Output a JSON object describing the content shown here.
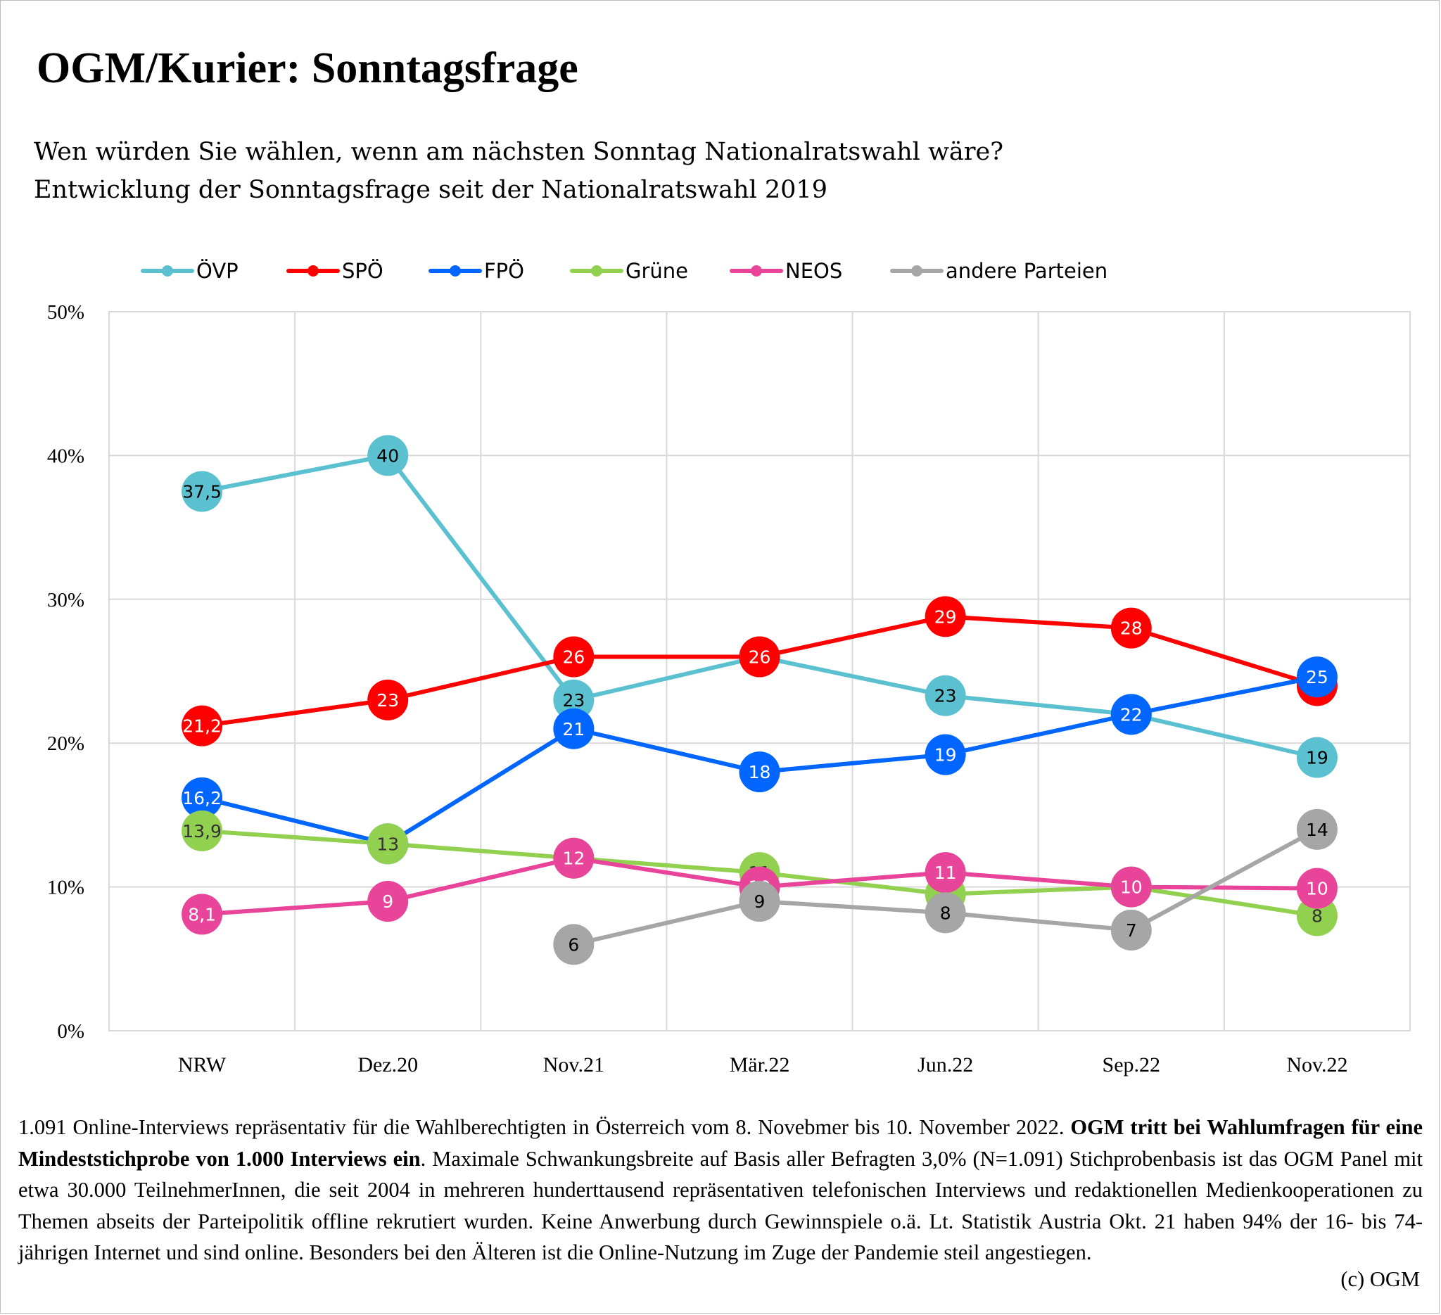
{
  "title": "OGM/Kurier: Sonntagsfrage",
  "subtitle_line1": "Wen würden Sie wählen, wenn am nächsten Sonntag Nationalratswahl wäre?",
  "subtitle_line2": "Entwicklung der Sonntagsfrage seit der Nationalratswahl 2019",
  "chart_data": {
    "type": "line",
    "categories": [
      "NRW",
      "Dez.20",
      "Nov.21",
      "Mär.22",
      "Jun.22",
      "Sep.22",
      "Nov.22"
    ],
    "ylim": [
      0,
      50
    ],
    "yticks": [
      0,
      10,
      20,
      30,
      40,
      50
    ],
    "ytick_labels": [
      "0%",
      "10%",
      "20%",
      "30%",
      "40%",
      "50%"
    ],
    "grid": true,
    "legend_position": "top",
    "series": [
      {
        "name": "ÖVP",
        "color": "#5BC0CF",
        "label_color": "#000000",
        "values": [
          37.5,
          40,
          23,
          26,
          23.3,
          22,
          19
        ],
        "labels": [
          "37,5",
          "40",
          "23",
          "",
          "23",
          "",
          "19"
        ]
      },
      {
        "name": "SPÖ",
        "color": "#FF0000",
        "label_color": "#ffffff",
        "values": [
          21.2,
          23,
          26,
          26,
          28.8,
          28,
          24
        ],
        "labels": [
          "21,2",
          "23",
          "26",
          "26",
          "29",
          "28",
          "24"
        ]
      },
      {
        "name": "FPÖ",
        "color": "#0066FF",
        "label_color": "#ffffff",
        "values": [
          16.2,
          13,
          21,
          18,
          19.2,
          22,
          24.6
        ],
        "labels": [
          "16,2",
          "",
          "21",
          "18",
          "19",
          "22",
          "25"
        ]
      },
      {
        "name": "Grüne",
        "color": "#92D050",
        "label_color": "#333333",
        "values": [
          13.9,
          13,
          12,
          11,
          9.5,
          10,
          8
        ],
        "labels": [
          "13,9",
          "13",
          "",
          "11",
          "",
          "",
          "8"
        ]
      },
      {
        "name": "NEOS",
        "color": "#E8449A",
        "label_color": "#ffffff",
        "values": [
          8.1,
          9,
          12,
          10,
          11,
          10,
          9.9
        ],
        "labels": [
          "8,1",
          "9",
          "12",
          "10",
          "11",
          "10",
          "10"
        ]
      },
      {
        "name": "andere Parteien",
        "color": "#A6A6A6",
        "label_color": "#000000",
        "values": [
          null,
          null,
          6,
          9,
          8.2,
          7,
          14
        ],
        "labels": [
          "",
          "",
          "6",
          "9",
          "8",
          "7",
          "14"
        ]
      }
    ]
  },
  "footnote": {
    "part1": "1.091 Online-Interviews repräsentativ für die Wahlberechtigten in Österreich vom 8. Novebmer bis 10. November 2022. ",
    "bold": "OGM tritt bei Wahl­umfragen für eine Mindeststichprobe von 1.000 Interviews ein",
    "part2": ". Maximale Schwankungsbreite auf Basis aller Befragten 3,0% (N=1.091) Stichprobenbasis ist das OGM Panel mit etwa 30.000 TeilnehmerInnen, die seit 2004 in mehreren hunderttausend repräsentativen telefoni­schen Interviews und redaktionellen Medienkooperationen zu Themen abseits der Parteipolitik offline rekrutiert wurden. Keine Anwerbung durch Gewinnspiele o.ä. Lt. Statistik Austria Okt. 21 haben 94% der 16- bis 74-jährigen Internet und sind online. Besonders bei den Älteren ist die Online-Nutzung im Zuge der Pandemie steil angestiegen."
  },
  "copyright": "(c) OGM"
}
